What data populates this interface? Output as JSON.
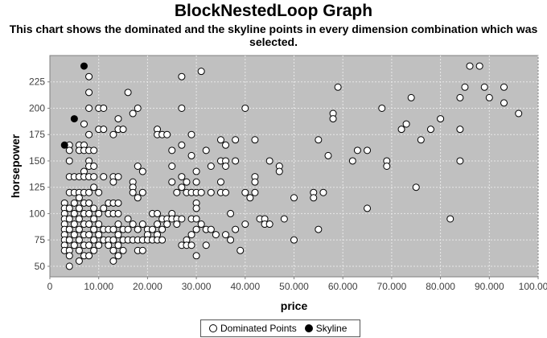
{
  "chart_data": {
    "type": "scatter",
    "title": "BlockNestedLoop Graph",
    "subtitle_line1": "This chart shows the dominated and the skyline points in every dimension combination which was",
    "subtitle_line2": "selected.",
    "xlabel": "price",
    "ylabel": "horsepower",
    "xlim": [
      0,
      100000
    ],
    "ylim": [
      40,
      250
    ],
    "x_ticks": [
      0,
      10000,
      20000,
      30000,
      40000,
      50000,
      60000,
      70000,
      80000,
      90000,
      100000
    ],
    "x_tick_labels": [
      "0",
      "10.000",
      "20.000",
      "30.000",
      "40.000",
      "50.000",
      "60.000",
      "70.000",
      "80.000",
      "90.000",
      "100.00"
    ],
    "y_ticks": [
      50,
      75,
      100,
      125,
      150,
      175,
      200,
      225
    ],
    "y_tick_labels": [
      "50",
      "75",
      "100",
      "125",
      "150",
      "175",
      "200",
      "225"
    ],
    "grid": true,
    "legend_position": "bottom",
    "colors": {
      "plot_background": "#c0c0c0",
      "dominated_fill": "#ffffff",
      "skyline_fill": "#000000",
      "grid": "#e8e8e8"
    },
    "series": [
      {
        "name": "Dominated Points",
        "points": [
          [
            3000,
            110
          ],
          [
            3000,
            105
          ],
          [
            3000,
            100
          ],
          [
            3000,
            95
          ],
          [
            3000,
            90
          ],
          [
            3000,
            85
          ],
          [
            3000,
            80
          ],
          [
            3000,
            75
          ],
          [
            3000,
            70
          ],
          [
            3000,
            65
          ],
          [
            4000,
            165
          ],
          [
            4000,
            160
          ],
          [
            4000,
            150
          ],
          [
            4000,
            135
          ],
          [
            4000,
            120
          ],
          [
            4000,
            105
          ],
          [
            4000,
            95
          ],
          [
            4000,
            85
          ],
          [
            4000,
            75
          ],
          [
            4000,
            65
          ],
          [
            4000,
            60
          ],
          [
            4000,
            50
          ],
          [
            5000,
            135
          ],
          [
            5000,
            120
          ],
          [
            5000,
            110
          ],
          [
            5000,
            100
          ],
          [
            5000,
            90
          ],
          [
            5000,
            80
          ],
          [
            5000,
            70
          ],
          [
            6000,
            165
          ],
          [
            6000,
            160
          ],
          [
            6000,
            135
          ],
          [
            6000,
            120
          ],
          [
            6000,
            115
          ],
          [
            6000,
            105
          ],
          [
            6000,
            95
          ],
          [
            6000,
            85
          ],
          [
            6000,
            75
          ],
          [
            6000,
            65
          ],
          [
            6000,
            55
          ],
          [
            7000,
            185
          ],
          [
            7000,
            165
          ],
          [
            7000,
            160
          ],
          [
            7000,
            140
          ],
          [
            7000,
            135
          ],
          [
            7000,
            120
          ],
          [
            7000,
            110
          ],
          [
            7000,
            100
          ],
          [
            7000,
            90
          ],
          [
            7000,
            80
          ],
          [
            7000,
            70
          ],
          [
            7000,
            60
          ],
          [
            8000,
            230
          ],
          [
            8000,
            215
          ],
          [
            8000,
            200
          ],
          [
            8000,
            175
          ],
          [
            8000,
            160
          ],
          [
            8000,
            150
          ],
          [
            8000,
            145
          ],
          [
            8000,
            135
          ],
          [
            8000,
            120
          ],
          [
            8000,
            110
          ],
          [
            8000,
            100
          ],
          [
            8000,
            90
          ],
          [
            8000,
            80
          ],
          [
            8000,
            70
          ],
          [
            8000,
            60
          ],
          [
            9000,
            160
          ],
          [
            9000,
            145
          ],
          [
            9000,
            135
          ],
          [
            9000,
            125
          ],
          [
            9000,
            105
          ],
          [
            9000,
            95
          ],
          [
            9000,
            85
          ],
          [
            9000,
            75
          ],
          [
            9000,
            65
          ],
          [
            10000,
            200
          ],
          [
            10000,
            180
          ],
          [
            10000,
            120
          ],
          [
            10000,
            100
          ],
          [
            10000,
            90
          ],
          [
            10000,
            80
          ],
          [
            10000,
            70
          ],
          [
            11000,
            200
          ],
          [
            11000,
            180
          ],
          [
            11000,
            135
          ],
          [
            11000,
            105
          ],
          [
            11000,
            85
          ],
          [
            11000,
            75
          ],
          [
            12000,
            110
          ],
          [
            12000,
            100
          ],
          [
            12000,
            85
          ],
          [
            12000,
            75
          ],
          [
            12000,
            70
          ],
          [
            13000,
            175
          ],
          [
            13000,
            135
          ],
          [
            13000,
            130
          ],
          [
            13000,
            110
          ],
          [
            13000,
            100
          ],
          [
            13000,
            85
          ],
          [
            13000,
            75
          ],
          [
            13000,
            65
          ],
          [
            13000,
            55
          ],
          [
            14000,
            190
          ],
          [
            14000,
            180
          ],
          [
            14000,
            135
          ],
          [
            14000,
            110
          ],
          [
            14000,
            100
          ],
          [
            14000,
            90
          ],
          [
            14000,
            80
          ],
          [
            14000,
            70
          ],
          [
            14000,
            60
          ],
          [
            15000,
            180
          ],
          [
            15000,
            85
          ],
          [
            15000,
            75
          ],
          [
            15000,
            65
          ],
          [
            16000,
            215
          ],
          [
            16000,
            95
          ],
          [
            16000,
            85
          ],
          [
            16000,
            75
          ],
          [
            17000,
            195
          ],
          [
            17000,
            130
          ],
          [
            17000,
            125
          ],
          [
            17000,
            120
          ],
          [
            17000,
            90
          ],
          [
            17000,
            75
          ],
          [
            18000,
            200
          ],
          [
            18000,
            145
          ],
          [
            18000,
            115
          ],
          [
            18000,
            85
          ],
          [
            18000,
            75
          ],
          [
            18000,
            65
          ],
          [
            19000,
            140
          ],
          [
            19000,
            120
          ],
          [
            19000,
            90
          ],
          [
            19000,
            75
          ],
          [
            19000,
            65
          ],
          [
            20000,
            85
          ],
          [
            20000,
            80
          ],
          [
            20000,
            75
          ],
          [
            21000,
            100
          ],
          [
            21000,
            85
          ],
          [
            21000,
            75
          ],
          [
            22000,
            180
          ],
          [
            22000,
            175
          ],
          [
            22000,
            100
          ],
          [
            22000,
            90
          ],
          [
            22000,
            80
          ],
          [
            22000,
            75
          ],
          [
            23000,
            175
          ],
          [
            23000,
            95
          ],
          [
            23000,
            85
          ],
          [
            23000,
            75
          ],
          [
            24000,
            175
          ],
          [
            24000,
            95
          ],
          [
            24000,
            90
          ],
          [
            25000,
            160
          ],
          [
            25000,
            145
          ],
          [
            25000,
            130
          ],
          [
            25000,
            100
          ],
          [
            25000,
            95
          ],
          [
            26000,
            120
          ],
          [
            26000,
            95
          ],
          [
            26000,
            90
          ],
          [
            27000,
            230
          ],
          [
            27000,
            200
          ],
          [
            27000,
            165
          ],
          [
            27000,
            135
          ],
          [
            27000,
            125
          ],
          [
            27000,
            95
          ],
          [
            27000,
            70
          ],
          [
            28000,
            130
          ],
          [
            28000,
            120
          ],
          [
            28000,
            75
          ],
          [
            28000,
            70
          ],
          [
            29000,
            175
          ],
          [
            29000,
            155
          ],
          [
            29000,
            120
          ],
          [
            29000,
            95
          ],
          [
            29000,
            80
          ],
          [
            29000,
            70
          ],
          [
            30000,
            140
          ],
          [
            30000,
            130
          ],
          [
            30000,
            120
          ],
          [
            30000,
            110
          ],
          [
            30000,
            105
          ],
          [
            30000,
            95
          ],
          [
            30000,
            85
          ],
          [
            30000,
            60
          ],
          [
            31000,
            235
          ],
          [
            31000,
            120
          ],
          [
            31000,
            90
          ],
          [
            32000,
            160
          ],
          [
            32000,
            85
          ],
          [
            32000,
            70
          ],
          [
            33000,
            145
          ],
          [
            33000,
            120
          ],
          [
            33000,
            85
          ],
          [
            34000,
            80
          ],
          [
            35000,
            170
          ],
          [
            35000,
            150
          ],
          [
            35000,
            130
          ],
          [
            35000,
            120
          ],
          [
            36000,
            165
          ],
          [
            36000,
            150
          ],
          [
            36000,
            145
          ],
          [
            36000,
            120
          ],
          [
            36000,
            80
          ],
          [
            37000,
            100
          ],
          [
            37000,
            75
          ],
          [
            38000,
            170
          ],
          [
            38000,
            150
          ],
          [
            38000,
            85
          ],
          [
            39000,
            65
          ],
          [
            40000,
            200
          ],
          [
            40000,
            120
          ],
          [
            40000,
            90
          ],
          [
            41000,
            115
          ],
          [
            42000,
            170
          ],
          [
            42000,
            135
          ],
          [
            42000,
            130
          ],
          [
            42000,
            120
          ],
          [
            43000,
            95
          ],
          [
            44000,
            95
          ],
          [
            44000,
            90
          ],
          [
            45000,
            150
          ],
          [
            45000,
            90
          ],
          [
            47000,
            145
          ],
          [
            47000,
            140
          ],
          [
            48000,
            95
          ],
          [
            50000,
            115
          ],
          [
            50000,
            75
          ],
          [
            54000,
            120
          ],
          [
            54000,
            115
          ],
          [
            55000,
            170
          ],
          [
            55000,
            85
          ],
          [
            56000,
            120
          ],
          [
            57000,
            155
          ],
          [
            58000,
            195
          ],
          [
            58000,
            190
          ],
          [
            59000,
            220
          ],
          [
            62000,
            150
          ],
          [
            63000,
            160
          ],
          [
            65000,
            160
          ],
          [
            65000,
            105
          ],
          [
            68000,
            200
          ],
          [
            69000,
            150
          ],
          [
            69000,
            145
          ],
          [
            72000,
            180
          ],
          [
            73000,
            185
          ],
          [
            74000,
            210
          ],
          [
            75000,
            125
          ],
          [
            76000,
            170
          ],
          [
            78000,
            180
          ],
          [
            80000,
            190
          ],
          [
            82000,
            95
          ],
          [
            84000,
            210
          ],
          [
            84000,
            180
          ],
          [
            84000,
            150
          ],
          [
            85000,
            220
          ],
          [
            86000,
            240
          ],
          [
            88000,
            240
          ],
          [
            89000,
            220
          ],
          [
            90000,
            210
          ],
          [
            93000,
            220
          ],
          [
            93000,
            205
          ],
          [
            96000,
            195
          ]
        ]
      },
      {
        "name": "Skyline",
        "points": [
          [
            3000,
            165
          ],
          [
            5000,
            190
          ],
          [
            7000,
            240
          ]
        ]
      }
    ]
  }
}
